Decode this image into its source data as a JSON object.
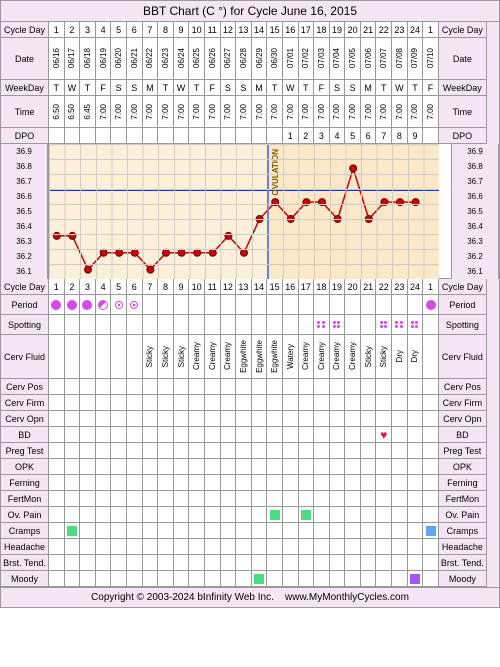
{
  "title": "BBT Chart (C °) for Cycle June 16, 2015",
  "footer": {
    "copyright": "Copyright © 2003-2024 bInfinity Web Inc.",
    "url": "www.MyMonthlyCycles.com"
  },
  "labels": {
    "cycle_day": "Cycle Day",
    "date": "Date",
    "weekday": "WeekDay",
    "time": "Time",
    "dpo": "DPO",
    "period": "Period",
    "spotting": "Spotting",
    "cerv_fluid": "Cerv Fluid",
    "cerv_pos": "Cerv Pos",
    "cerv_firm": "Cerv Firm",
    "cerv_opn": "Cerv Opn",
    "bd": "BD",
    "preg_test": "Preg Test",
    "opk": "OPK",
    "ferning": "Ferning",
    "fertmon": "FertMon",
    "ov_pain": "Ov. Pain",
    "cramps": "Cramps",
    "headache": "Headache",
    "brst_tend": "Brst. Tend.",
    "moody": "Moody"
  },
  "cycle_days": [
    1,
    2,
    3,
    4,
    5,
    6,
    7,
    8,
    9,
    10,
    11,
    12,
    13,
    14,
    15,
    16,
    17,
    18,
    19,
    20,
    21,
    22,
    23,
    24,
    1
  ],
  "dates": [
    "06/16",
    "06/17",
    "06/18",
    "06/19",
    "06/20",
    "06/21",
    "06/22",
    "06/23",
    "06/24",
    "06/25",
    "06/26",
    "06/27",
    "06/28",
    "06/29",
    "06/30",
    "07/01",
    "07/02",
    "07/03",
    "07/04",
    "07/05",
    "07/06",
    "07/07",
    "07/08",
    "07/09",
    "07/10"
  ],
  "weekdays": [
    "T",
    "W",
    "T",
    "F",
    "S",
    "S",
    "M",
    "T",
    "W",
    "T",
    "F",
    "S",
    "S",
    "M",
    "T",
    "W",
    "T",
    "F",
    "S",
    "S",
    "M",
    "T",
    "W",
    "T",
    "F"
  ],
  "times": [
    "6:50",
    "6:50",
    "6:45",
    "7:00",
    "7:00",
    "7:00",
    "7:00",
    "7:00",
    "7:00",
    "7:00",
    "7:00",
    "7:00",
    "7:00",
    "7:00",
    "7:00",
    "7:00",
    "7:00",
    "7:00",
    "7:00",
    "7:00",
    "7:00",
    "7:00",
    "7:00",
    "7:00",
    "7:00"
  ],
  "dpo": [
    "",
    "",
    "",
    "",
    "",
    "",
    "",
    "",
    "",
    "",
    "",
    "",
    "",
    "",
    "",
    "1",
    "2",
    "3",
    "4",
    "5",
    "6",
    "7",
    "8",
    "9",
    ""
  ],
  "temp_scale": [
    36.9,
    36.8,
    36.7,
    36.6,
    36.5,
    36.4,
    36.3,
    36.2,
    36.1
  ],
  "temps": [
    36.4,
    36.4,
    36.2,
    36.3,
    36.3,
    36.3,
    36.2,
    36.3,
    36.3,
    36.3,
    36.3,
    36.4,
    36.3,
    36.5,
    36.6,
    36.5,
    36.6,
    36.6,
    36.5,
    36.8,
    36.5,
    36.6,
    36.6,
    36.6,
    null
  ],
  "ovulation_after_day": 14,
  "coverline": 36.6,
  "colors": {
    "line": "#cc0000",
    "point_fill": "#cc0000",
    "point_stroke": "#660000",
    "coverline": "#0033ff",
    "bg_pre": "#fdf0d8",
    "bg_post": "#ffe8c8"
  },
  "period": [
    "full",
    "full",
    "full",
    "half",
    "quarter",
    "quarter",
    "",
    "",
    "",
    "",
    "",
    "",
    "",
    "",
    "",
    "",
    "",
    "",
    "",
    "",
    "",
    "",
    "",
    "",
    "full"
  ],
  "spotting": [
    "",
    "",
    "",
    "",
    "",
    "",
    "",
    "",
    "",
    "",
    "",
    "",
    "",
    "",
    "",
    "",
    "",
    "y",
    "y",
    "",
    "",
    "y",
    "y",
    "y",
    ""
  ],
  "cerv_fluid": [
    "",
    "",
    "",
    "",
    "",
    "",
    "Sticky",
    "Sticky",
    "Sticky",
    "Creamy",
    "Creamy",
    "Creamy",
    "Eggwhite",
    "Eggwhite",
    "Eggwhite",
    "Watery",
    "Creamy",
    "Creamy",
    "Creamy",
    "Creamy",
    "Sticky",
    "Sticky",
    "Dry",
    "Dry",
    ""
  ],
  "bd": [
    "",
    "",
    "",
    "",
    "",
    "",
    "",
    "",
    "",
    "",
    "",
    "",
    "",
    "",
    "",
    "",
    "",
    "",
    "",
    "",
    "",
    "♥",
    "",
    "",
    ""
  ],
  "ov_pain": [
    "",
    "",
    "",
    "",
    "",
    "",
    "",
    "",
    "",
    "",
    "",
    "",
    "",
    "",
    "g",
    "",
    "g",
    "",
    "",
    "",
    "",
    "",
    "",
    "",
    ""
  ],
  "cramps": [
    "",
    "g",
    "",
    "",
    "",
    "",
    "",
    "",
    "",
    "",
    "",
    "",
    "",
    "",
    "",
    "",
    "",
    "",
    "",
    "",
    "",
    "",
    "",
    "",
    "b"
  ],
  "moody": [
    "",
    "",
    "",
    "",
    "",
    "",
    "",
    "",
    "",
    "",
    "",
    "",
    "",
    "g",
    "",
    "",
    "",
    "",
    "",
    "",
    "",
    "",
    "",
    "p",
    ""
  ]
}
